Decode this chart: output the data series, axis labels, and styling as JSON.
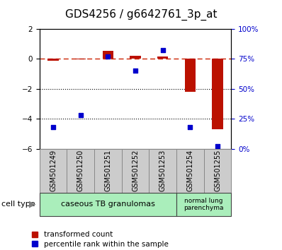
{
  "title": "GDS4256 / g6642761_3p_at",
  "samples": [
    "GSM501249",
    "GSM501250",
    "GSM501251",
    "GSM501252",
    "GSM501253",
    "GSM501254",
    "GSM501255"
  ],
  "red_values": [
    -0.15,
    -0.05,
    0.55,
    0.2,
    0.15,
    -2.2,
    -4.7
  ],
  "blue_pct": [
    18,
    28,
    77,
    65,
    82,
    18,
    2
  ],
  "ylim_left": [
    -6,
    2
  ],
  "ylim_right": [
    0,
    100
  ],
  "red_color": "#bb1100",
  "blue_color": "#0000cc",
  "dashed_line_color": "#cc2200",
  "group1_label": "caseous TB granulomas",
  "group1_count": 5,
  "group2_label": "normal lung\nparenchyma",
  "group2_count": 2,
  "group_color": "#aaeebb",
  "sample_box_color": "#cccccc",
  "legend_red": "transformed count",
  "legend_blue": "percentile rank within the sample",
  "cell_type_label": "cell type",
  "bar_width": 0.4,
  "title_fontsize": 11,
  "tick_fontsize": 7.5,
  "label_fontsize": 7
}
